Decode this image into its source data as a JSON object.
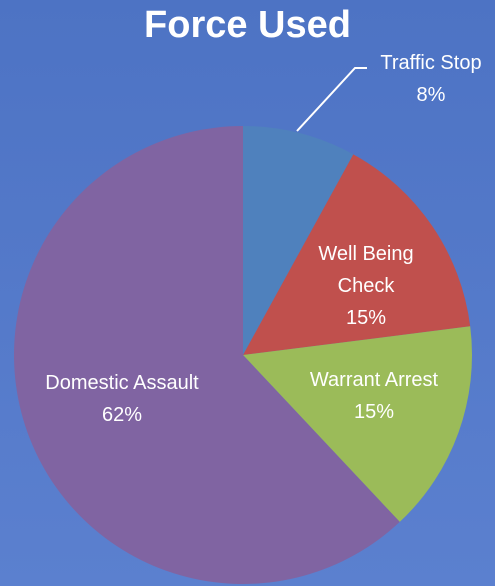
{
  "chart_data": {
    "type": "pie",
    "title": "Force Used",
    "categories": [
      "Traffic Stop",
      "Well Being Check",
      "Warrant Arrest",
      "Domestic Assault"
    ],
    "values": [
      8,
      15,
      15,
      62
    ],
    "value_labels": [
      "8%",
      "15%",
      "15%",
      "62%"
    ],
    "colors": [
      "#4f81bd",
      "#c0504d",
      "#9bbb59",
      "#8064a2"
    ]
  }
}
